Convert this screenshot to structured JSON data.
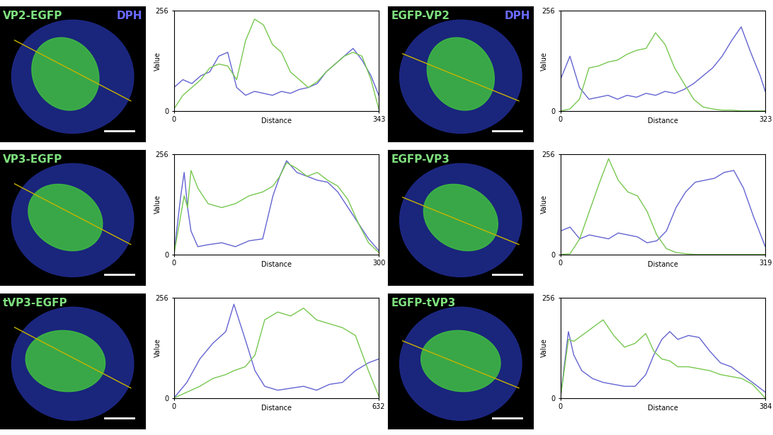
{
  "images": [
    {
      "label": "VP2-EGFP",
      "stain": "DPH"
    },
    {
      "label": "EGFP-VP2",
      "stain": "DPH"
    },
    {
      "label": "VP3-EGFP"
    },
    {
      "label": "EGFP-VP3"
    },
    {
      "label": "tVP3-EGFP"
    },
    {
      "label": "EGFP-tVP3"
    }
  ],
  "chart_data": [
    {
      "type": "line",
      "xlabel": "Distance",
      "ylabel": "Value",
      "xlim": [
        0,
        343
      ],
      "xticks": [
        0,
        343
      ],
      "ylim": [
        0,
        256
      ],
      "yticks": [
        0,
        256
      ],
      "x": [
        0,
        15,
        30,
        45,
        60,
        75,
        90,
        105,
        120,
        135,
        150,
        165,
        180,
        195,
        210,
        225,
        240,
        255,
        270,
        285,
        300,
        315,
        330,
        343
      ],
      "series": [
        {
          "color": "#6464d2",
          "values": [
            60,
            80,
            70,
            90,
            100,
            140,
            150,
            60,
            40,
            50,
            45,
            40,
            50,
            45,
            55,
            60,
            70,
            100,
            120,
            140,
            160,
            130,
            90,
            40
          ]
        },
        {
          "color": "#78c850",
          "values": [
            5,
            40,
            60,
            80,
            110,
            120,
            115,
            80,
            180,
            235,
            220,
            170,
            150,
            100,
            80,
            60,
            75,
            100,
            120,
            140,
            150,
            140,
            80,
            5
          ]
        }
      ]
    },
    {
      "type": "line",
      "xlabel": "Distance",
      "ylabel": "Value",
      "xlim": [
        0,
        323
      ],
      "xticks": [
        0,
        323
      ],
      "ylim": [
        0,
        256
      ],
      "yticks": [
        0,
        256
      ],
      "x": [
        0,
        15,
        30,
        45,
        60,
        75,
        90,
        105,
        120,
        135,
        150,
        165,
        180,
        195,
        210,
        225,
        240,
        255,
        270,
        285,
        300,
        315,
        323
      ],
      "series": [
        {
          "color": "#6464d2",
          "values": [
            80,
            140,
            60,
            30,
            35,
            40,
            30,
            40,
            35,
            45,
            40,
            50,
            45,
            55,
            70,
            90,
            110,
            140,
            180,
            215,
            150,
            90,
            50
          ]
        },
        {
          "color": "#78c850",
          "values": [
            0,
            5,
            30,
            110,
            115,
            125,
            130,
            145,
            155,
            160,
            200,
            170,
            110,
            70,
            30,
            10,
            5,
            2,
            2,
            0,
            0,
            0,
            0
          ]
        }
      ]
    },
    {
      "type": "line",
      "xlabel": "Distance",
      "ylabel": "Value",
      "xlim": [
        0,
        300
      ],
      "xticks": [
        0,
        300
      ],
      "ylim": [
        0,
        256
      ],
      "yticks": [
        0,
        256
      ],
      "x": [
        0,
        10,
        15,
        20,
        25,
        35,
        50,
        70,
        90,
        110,
        130,
        145,
        155,
        165,
        180,
        195,
        210,
        225,
        240,
        255,
        270,
        285,
        300
      ],
      "series": [
        {
          "color": "#6464d2",
          "values": [
            0,
            150,
            210,
            120,
            60,
            20,
            25,
            30,
            20,
            35,
            40,
            150,
            200,
            240,
            210,
            200,
            190,
            185,
            160,
            120,
            80,
            40,
            10
          ]
        },
        {
          "color": "#78c850",
          "values": [
            0,
            100,
            150,
            120,
            215,
            170,
            130,
            120,
            130,
            150,
            160,
            175,
            200,
            235,
            220,
            200,
            210,
            190,
            175,
            140,
            80,
            30,
            5
          ]
        }
      ]
    },
    {
      "type": "line",
      "xlabel": "Distance",
      "ylabel": "Value",
      "xlim": [
        0,
        319
      ],
      "xticks": [
        0,
        319
      ],
      "ylim": [
        0,
        256
      ],
      "yticks": [
        0,
        256
      ],
      "x": [
        0,
        15,
        30,
        45,
        60,
        75,
        90,
        105,
        120,
        135,
        150,
        165,
        180,
        195,
        210,
        225,
        240,
        255,
        270,
        285,
        300,
        319
      ],
      "series": [
        {
          "color": "#6464d2",
          "values": [
            60,
            70,
            40,
            50,
            45,
            40,
            55,
            50,
            45,
            30,
            35,
            60,
            120,
            160,
            185,
            190,
            195,
            210,
            215,
            170,
            100,
            20
          ]
        },
        {
          "color": "#78c850",
          "values": [
            0,
            2,
            40,
            110,
            180,
            245,
            190,
            160,
            150,
            110,
            50,
            15,
            5,
            2,
            0,
            0,
            0,
            0,
            0,
            0,
            0,
            0
          ]
        }
      ]
    },
    {
      "type": "line",
      "xlabel": "Distance",
      "ylabel": "Value",
      "xlim": [
        0,
        632
      ],
      "xticks": [
        0,
        632
      ],
      "ylim": [
        0,
        256
      ],
      "yticks": [
        0,
        256
      ],
      "x": [
        0,
        40,
        80,
        120,
        160,
        185,
        220,
        250,
        280,
        320,
        360,
        400,
        440,
        480,
        520,
        560,
        600,
        632
      ],
      "series": [
        {
          "color": "#6464d2",
          "values": [
            0,
            40,
            100,
            140,
            170,
            240,
            150,
            70,
            30,
            20,
            25,
            30,
            20,
            35,
            40,
            70,
            90,
            100
          ]
        },
        {
          "color": "#78c850",
          "values": [
            0,
            15,
            30,
            50,
            60,
            70,
            80,
            110,
            200,
            220,
            210,
            230,
            200,
            190,
            180,
            160,
            70,
            5
          ]
        }
      ]
    },
    {
      "type": "line",
      "xlabel": "Distance",
      "ylabel": "Value",
      "xlim": [
        0,
        384
      ],
      "xticks": [
        0,
        384
      ],
      "ylim": [
        0,
        256
      ],
      "yticks": [
        0,
        256
      ],
      "x": [
        0,
        15,
        25,
        40,
        60,
        80,
        100,
        120,
        140,
        160,
        175,
        190,
        205,
        220,
        240,
        260,
        280,
        300,
        320,
        340,
        360,
        384
      ],
      "series": [
        {
          "color": "#6464d2",
          "values": [
            0,
            170,
            110,
            70,
            50,
            40,
            35,
            30,
            30,
            60,
            110,
            150,
            170,
            150,
            160,
            155,
            120,
            90,
            80,
            60,
            40,
            15
          ]
        },
        {
          "color": "#78c850",
          "values": [
            0,
            150,
            145,
            160,
            180,
            200,
            160,
            130,
            140,
            165,
            120,
            100,
            95,
            80,
            80,
            75,
            70,
            60,
            55,
            50,
            35,
            0
          ]
        }
      ]
    }
  ]
}
